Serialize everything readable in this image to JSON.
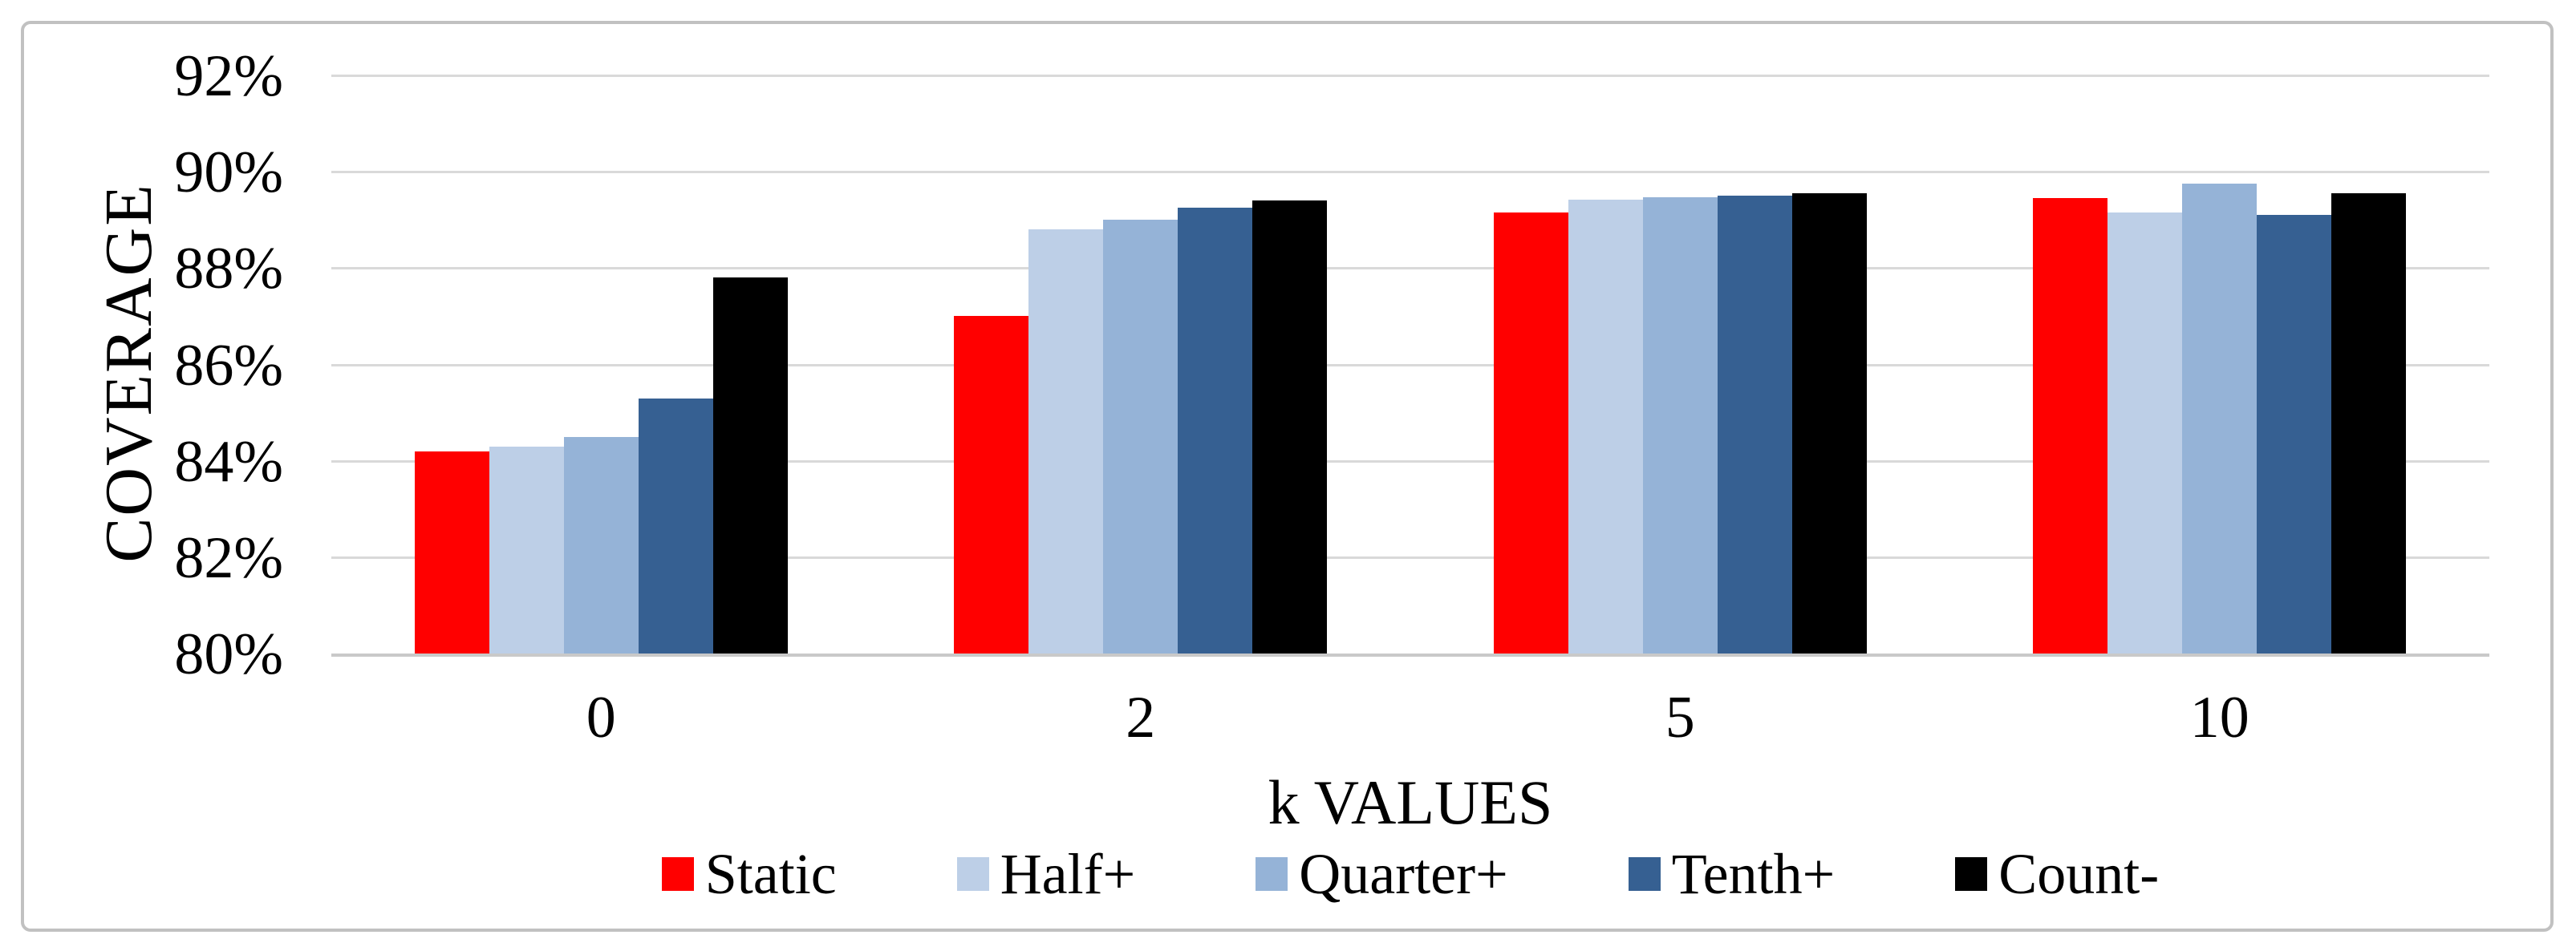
{
  "chart_data": {
    "type": "bar",
    "title": "",
    "xlabel": "k VALUES",
    "ylabel": "COVERAGE",
    "categories": [
      "0",
      "2",
      "5",
      "10"
    ],
    "series": [
      {
        "name": "Static",
        "color": "#ff0000",
        "values": [
          84.2,
          87.0,
          89.15,
          89.45
        ]
      },
      {
        "name": "Half+",
        "color": "#bdcfe7",
        "values": [
          84.3,
          88.8,
          89.42,
          89.15
        ]
      },
      {
        "name": "Quarter+",
        "color": "#95b3d7",
        "values": [
          84.5,
          89.0,
          89.47,
          89.75
        ]
      },
      {
        "name": "Tenth+",
        "color": "#366092",
        "values": [
          85.3,
          89.25,
          89.5,
          89.1
        ]
      },
      {
        "name": "Count-",
        "color": "#000000",
        "values": [
          87.8,
          89.4,
          89.55,
          89.55
        ]
      }
    ],
    "ylim": [
      80,
      92
    ],
    "yticks": [
      92,
      90,
      88,
      86,
      84,
      82,
      80
    ],
    "ytick_suffix": "%",
    "grid": true,
    "legend_position": "bottom",
    "colors": {
      "gridline": "#d9d9d9",
      "axis_line": "#c9c9c9",
      "frame_border": "#c1c1c1",
      "text": "#000000",
      "background": "#ffffff"
    }
  }
}
